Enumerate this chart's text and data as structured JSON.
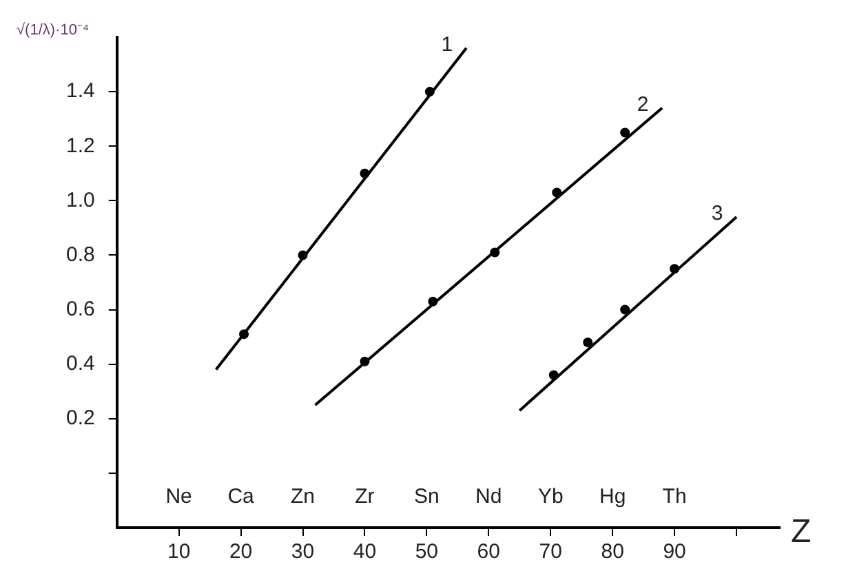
{
  "chart_data": {
    "type": "line",
    "xlabel": "Z",
    "ylabel": "√(1/λ)·10⁻⁴",
    "xlim": [
      0,
      107
    ],
    "ylim": [
      -0.2,
      1.6
    ],
    "xticks": [
      10,
      20,
      30,
      40,
      50,
      60,
      70,
      80,
      90,
      {
        "value": 100,
        "label": null
      }
    ],
    "yticks": [
      {
        "value": 0,
        "label": null
      },
      {
        "value": 0.2,
        "label": "0.2"
      },
      {
        "value": 0.4,
        "label": "0.4"
      },
      {
        "value": 0.6,
        "label": "0.6"
      },
      {
        "value": 0.8,
        "label": "0.8"
      },
      {
        "value": 1,
        "label": "1.0"
      },
      {
        "value": 1.2,
        "label": "1.2"
      },
      {
        "value": 1.4,
        "label": "1.4"
      }
    ],
    "annotations": [
      "Ne",
      "Ca",
      "Zn",
      "Zr",
      "Sn",
      "Nd",
      "Yb",
      "Hg",
      "Th"
    ],
    "grid": false,
    "legend": false,
    "series": [
      {
        "name": "1",
        "type": "line",
        "color": "#000000",
        "x": [
          16,
          56.4
        ],
        "values": [
          0.38,
          1.56
        ]
      },
      {
        "name": "2",
        "type": "line",
        "color": "#000000",
        "x": [
          32,
          88
        ],
        "values": [
          0.25,
          1.34
        ]
      },
      {
        "name": "3",
        "type": "line",
        "color": "#000000",
        "x": [
          65,
          100
        ],
        "values": [
          0.23,
          0.94
        ]
      },
      {
        "type": "scatter",
        "color": "#000000",
        "x": [
          20.5,
          30,
          40,
          50.5
        ],
        "values": [
          0.51,
          0.8,
          1.1,
          1.4
        ]
      },
      {
        "type": "scatter",
        "color": "#000000",
        "x": [
          40,
          51,
          61,
          71,
          82
        ],
        "values": [
          0.41,
          0.63,
          0.81,
          1.03,
          1.25
        ]
      },
      {
        "type": "scatter",
        "color": "#000000",
        "x": [
          70.5,
          76,
          82,
          90
        ],
        "values": [
          0.36,
          0.48,
          0.6,
          0.75
        ]
      }
    ]
  }
}
